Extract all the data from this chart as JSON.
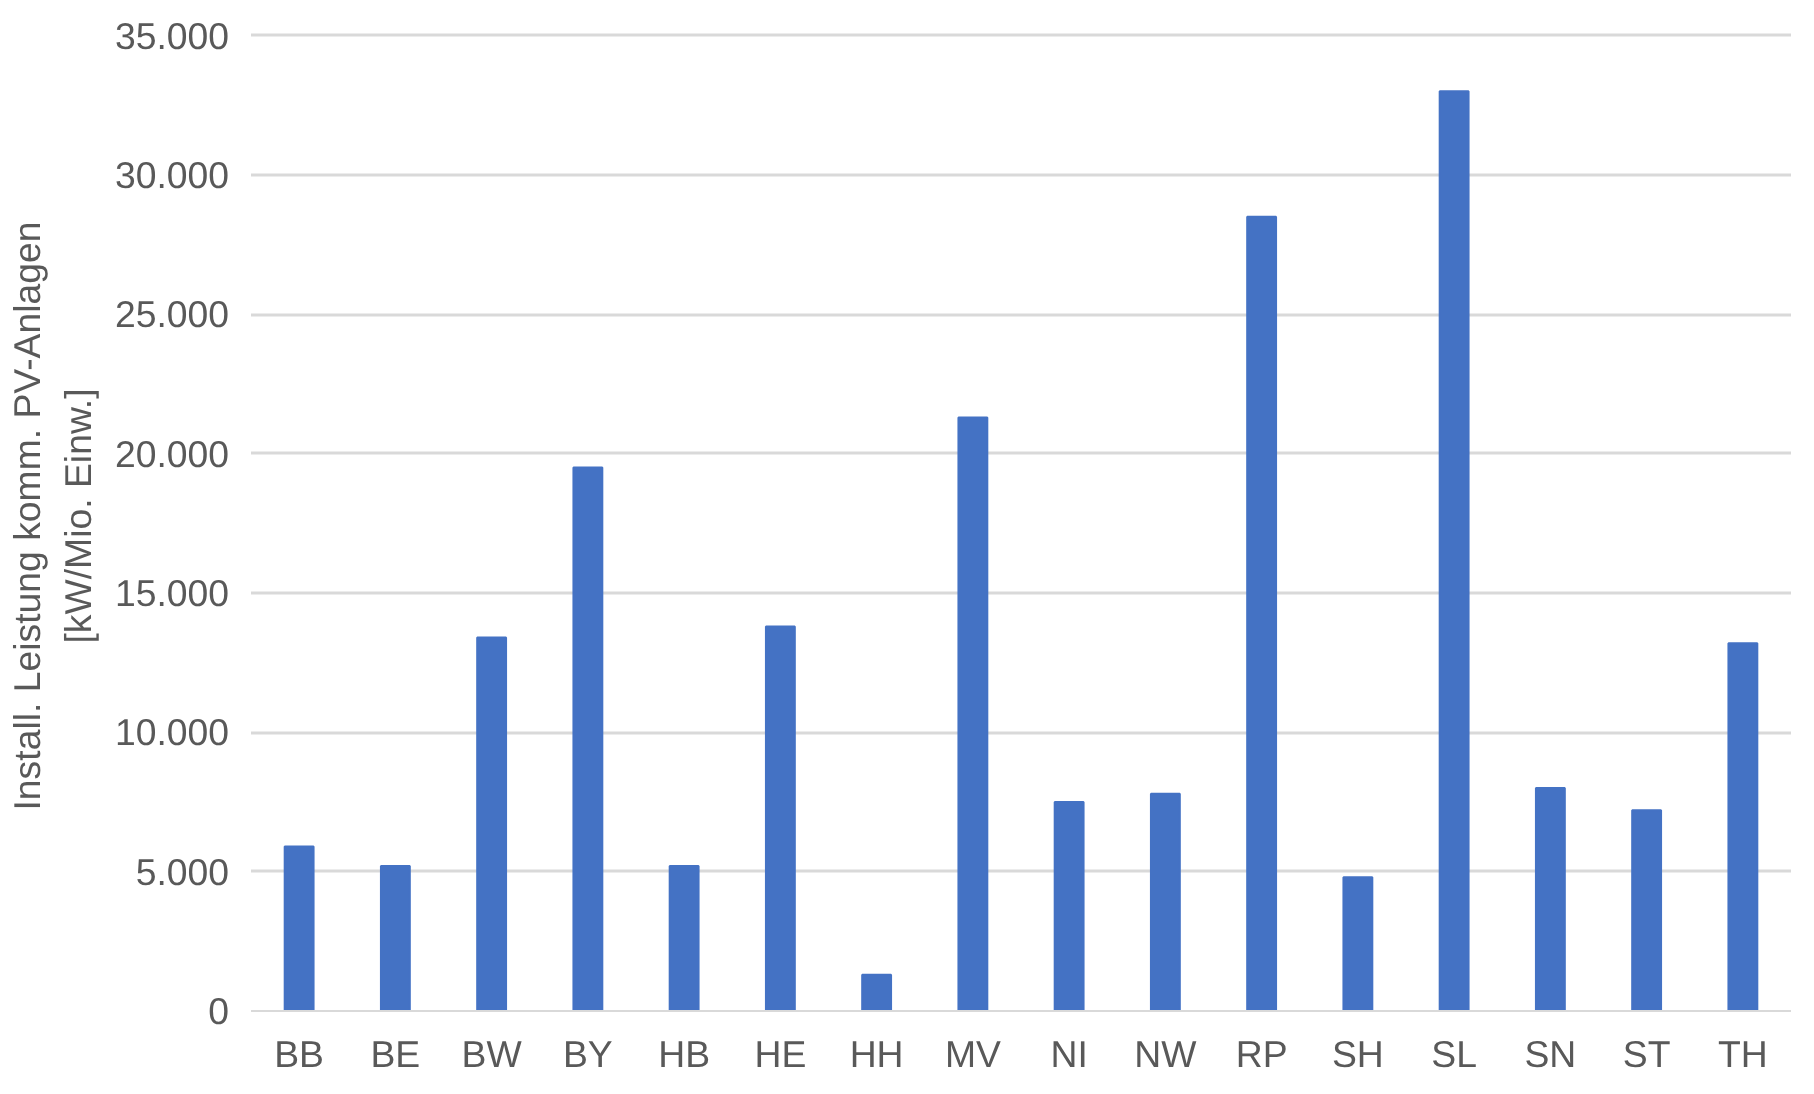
{
  "chart_data": {
    "type": "bar",
    "ylabel": "Install. Leistung komm. PV-Anlagen\n[kW/Mio. Einw.]",
    "categories": [
      "BB",
      "BE",
      "BW",
      "BY",
      "HB",
      "HE",
      "HH",
      "MV",
      "NI",
      "NW",
      "RP",
      "SH",
      "SL",
      "SN",
      "ST",
      "TH"
    ],
    "values": [
      5900,
      5200,
      13400,
      19500,
      5200,
      13800,
      1300,
      21300,
      7500,
      7800,
      28500,
      4800,
      33000,
      8000,
      7200,
      13200
    ],
    "color": "#4472c4",
    "ylim": [
      0,
      35000
    ],
    "yticks": [
      {
        "value": 0,
        "label": "0"
      },
      {
        "value": 5000,
        "label": "5.000"
      },
      {
        "value": 10000,
        "label": "10.000"
      },
      {
        "value": 15000,
        "label": "15.000"
      },
      {
        "value": 20000,
        "label": "20.000"
      },
      {
        "value": 25000,
        "label": "25.000"
      },
      {
        "value": 30000,
        "label": "30.000"
      },
      {
        "value": 35000,
        "label": "35.000"
      }
    ],
    "grid": "y"
  }
}
